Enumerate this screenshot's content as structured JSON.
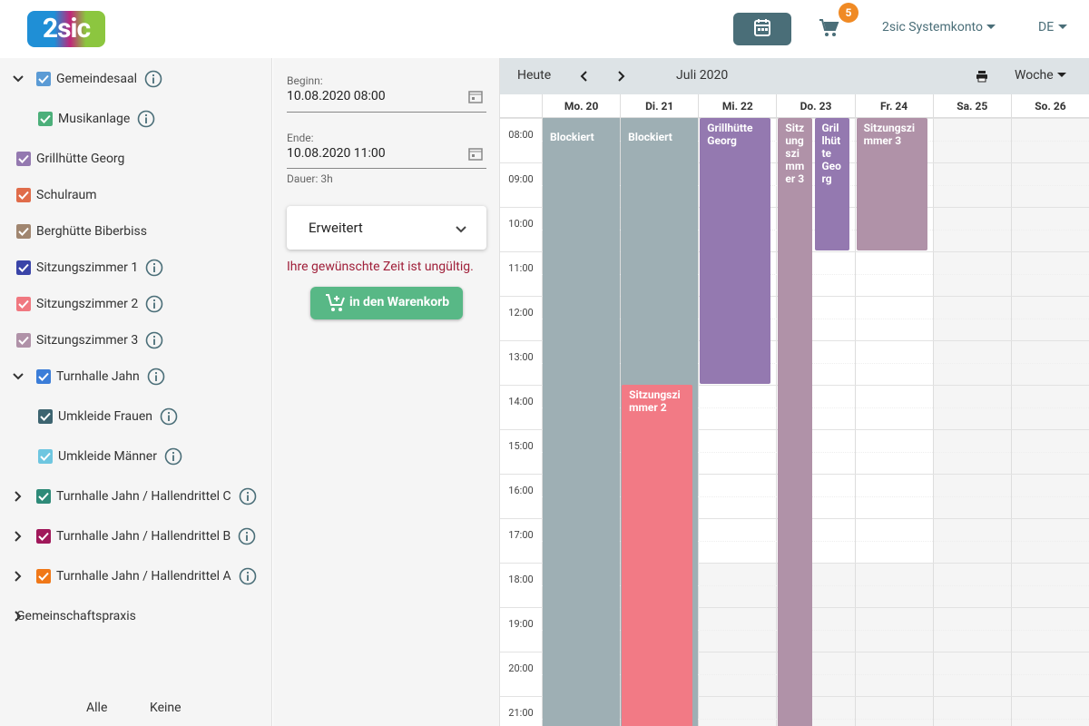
{
  "header": {
    "logo": "2sic",
    "cart_count": "5",
    "account": "2sic Systemkonto",
    "language": "DE"
  },
  "sidebar": {
    "resources": [
      {
        "label": "Gemeindesaal",
        "color": "#5b9bd5",
        "indent": 0,
        "expanded": true,
        "info": true
      },
      {
        "label": "Musikanlage",
        "color": "#4caf7a",
        "indent": 1,
        "info": true
      },
      {
        "label": "Grillhütte Georg",
        "color": "#9479b0",
        "indent": 0,
        "info": false
      },
      {
        "label": "Schulraum",
        "color": "#e06c4a",
        "indent": 0,
        "info": false
      },
      {
        "label": "Berghütte Biberbiss",
        "color": "#a08670",
        "indent": 0,
        "info": false
      },
      {
        "label": "Sitzungszimmer 1",
        "color": "#3a44a8",
        "indent": 0,
        "info": true
      },
      {
        "label": "Sitzungszimmer 2",
        "color": "#f07880",
        "indent": 0,
        "info": true
      },
      {
        "label": "Sitzungszimmer 3",
        "color": "#b092a8",
        "indent": 0,
        "info": true
      },
      {
        "label": "Turnhalle Jahn",
        "color": "#3b7dd8",
        "indent": 0,
        "expanded": true,
        "info": true
      },
      {
        "label": "Umkleide Frauen",
        "color": "#3d6470",
        "indent": 1,
        "info": true
      },
      {
        "label": "Umkleide Männer",
        "color": "#6ec6e0",
        "indent": 1,
        "info": true
      },
      {
        "label": "Turnhalle Jahn / Hallendrittel C",
        "color": "#2e8a78",
        "indent": 0,
        "expanded": false,
        "info": true
      },
      {
        "label": "Turnhalle Jahn / Hallendrittel B",
        "color": "#a0185a",
        "indent": 0,
        "expanded": false,
        "info": true
      },
      {
        "label": "Turnhalle Jahn / Hallendrittel A",
        "color": "#f07818",
        "indent": 0,
        "expanded": false,
        "info": true
      },
      {
        "label": "Gemeinschaftspraxis",
        "color": null,
        "indent": 0,
        "expanded": false,
        "info": false
      }
    ],
    "select_all": "Alle",
    "select_none": "Keine"
  },
  "form": {
    "begin_label": "Beginn:",
    "begin_value": "10.08.2020 08:00",
    "end_label": "Ende:",
    "end_value": "10.08.2020 11:00",
    "duration": "Dauer: 3h",
    "advanced": "Erweitert",
    "error": "Ihre gewünschte Zeit ist ungültig.",
    "add_button": "in den Warenkorb"
  },
  "calendar": {
    "today": "Heute",
    "period": "Juli 2020",
    "view": "Woche",
    "days": [
      "Mo. 20",
      "Di. 21",
      "Mi. 22",
      "Do. 23",
      "Fr. 24",
      "Sa. 25",
      "So. 26"
    ],
    "hours": [
      "08:00",
      "09:00",
      "10:00",
      "11:00",
      "12:00",
      "13:00",
      "14:00",
      "15:00",
      "16:00",
      "17:00",
      "18:00",
      "19:00",
      "20:00",
      "21:00"
    ],
    "events": [
      {
        "title": "Blockiert",
        "day": 0,
        "start": 8,
        "end": 22,
        "color": "#9eafb4",
        "blocked": true
      },
      {
        "title": "Blockiert",
        "day": 1,
        "start": 8,
        "end": 22,
        "color": "#9eafb4",
        "blocked": true
      },
      {
        "title": "Sitzungszimmer 2",
        "day": 1,
        "start": 14,
        "end": 22,
        "color": "#f27a85",
        "blocked": false
      },
      {
        "title": "Grillhütte Georg",
        "day": 2,
        "start": 8,
        "end": 14,
        "color": "#9479b0",
        "blocked": false
      },
      {
        "title": "Sitzungszimmer 3",
        "day": 3,
        "start": 8,
        "end": 22,
        "color": "#b092a8",
        "blocked": false
      },
      {
        "title": "Grillhütte Georg",
        "day": 3,
        "start": 8,
        "end": 11,
        "color": "#9479b0",
        "blocked": false
      },
      {
        "title": "Sitzungszimmer 3",
        "day": 4,
        "start": 8,
        "end": 11,
        "color": "#b092a8",
        "blocked": false
      }
    ]
  }
}
